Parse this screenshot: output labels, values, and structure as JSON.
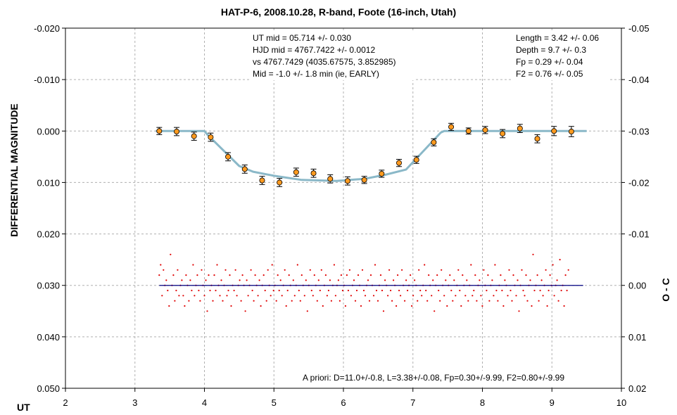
{
  "chart_data": {
    "type": "scatter",
    "title": "HAT-P-6, 2008.10.28, R-band, Foote (16-inch, Utah)",
    "xlabel": "UT",
    "ylabel": "DIFFERENTIAL MAGNITUDE",
    "y2label": "O - C",
    "xlim": [
      2,
      10
    ],
    "ylim": [
      -0.02,
      0.05
    ],
    "y_inverted": true,
    "y2lim": [
      -0.05,
      0.02
    ],
    "grid": true,
    "x_ticks": [
      "2",
      "3",
      "4",
      "5",
      "6",
      "7",
      "8",
      "9",
      "10"
    ],
    "y_ticks": [
      "-0.020",
      "-0.010",
      "0.000",
      "0.010",
      "0.020",
      "0.030",
      "0.040",
      "0.050"
    ],
    "y2_ticks": [
      "-0.05",
      "-0.04",
      "-0.03",
      "-0.02",
      "-0.01",
      "0.00",
      "0.01",
      "0.02"
    ],
    "annotations": {
      "fit": [
        "UT mid = 05.714 +/- 0.030",
        "HJD mid = 4767.7422 +/- 0.0012",
        "vs 4767.7429 (4035.67575, 3.852985)",
        "Mid = -1.0 +/- 1.8 min (ie, EARLY)"
      ],
      "params": [
        "Length = 3.42 +/- 0.06",
        "Depth = 9.7 +/- 0.3",
        "Fp = 0.29 +/- 0.04",
        "F2 = 0.76 +/- 0.05"
      ],
      "apriori": "A priori: D=11.0+/-0.8, L=3.38+/-0.08, Fp=0.30+/-9.99, F2=0.80+/-9.99"
    },
    "series": [
      {
        "type": "binned-points",
        "color": "#ff9a1f",
        "points": [
          {
            "x": 3.35,
            "y": 0.0,
            "err": 0.0007
          },
          {
            "x": 3.6,
            "y": 0.0001,
            "err": 0.0008
          },
          {
            "x": 3.85,
            "y": 0.001,
            "err": 0.0008
          },
          {
            "x": 4.09,
            "y": 0.0012,
            "err": 0.0008
          },
          {
            "x": 4.34,
            "y": 0.005,
            "err": 0.0008
          },
          {
            "x": 4.58,
            "y": 0.0074,
            "err": 0.0008
          },
          {
            "x": 4.83,
            "y": 0.0096,
            "err": 0.0008
          },
          {
            "x": 5.08,
            "y": 0.01,
            "err": 0.0008
          },
          {
            "x": 5.32,
            "y": 0.008,
            "err": 0.0008
          },
          {
            "x": 5.57,
            "y": 0.0082,
            "err": 0.0008
          },
          {
            "x": 5.81,
            "y": 0.0093,
            "err": 0.0008
          },
          {
            "x": 6.06,
            "y": 0.0097,
            "err": 0.0008
          },
          {
            "x": 6.3,
            "y": 0.0095,
            "err": 0.0007
          },
          {
            "x": 6.55,
            "y": 0.0083,
            "err": 0.0007
          },
          {
            "x": 6.8,
            "y": 0.0062,
            "err": 0.0007
          },
          {
            "x": 7.05,
            "y": 0.0056,
            "err": 0.0007
          },
          {
            "x": 7.3,
            "y": 0.0022,
            "err": 0.0007
          },
          {
            "x": 7.55,
            "y": -0.0008,
            "err": 0.0007
          },
          {
            "x": 7.8,
            "y": 0.0,
            "err": 0.0006
          },
          {
            "x": 8.04,
            "y": -0.0002,
            "err": 0.0007
          },
          {
            "x": 8.29,
            "y": 0.0005,
            "err": 0.0008
          },
          {
            "x": 8.54,
            "y": -0.0005,
            "err": 0.0008
          },
          {
            "x": 8.79,
            "y": 0.0015,
            "err": 0.0008
          },
          {
            "x": 9.03,
            "y": 0.0,
            "err": 0.0009
          },
          {
            "x": 9.28,
            "y": 0.0001,
            "err": 0.001
          }
        ]
      },
      {
        "type": "model-line",
        "color": "#8ab8c8",
        "x": [
          3.3,
          4.0,
          4.05,
          4.5,
          4.7,
          5.0,
          5.4,
          5.9,
          6.3,
          6.6,
          6.9,
          7.4,
          7.45,
          9.5
        ],
        "y": [
          0.0,
          0.0,
          0.0008,
          0.0068,
          0.0079,
          0.0087,
          0.0095,
          0.0097,
          0.0093,
          0.0085,
          0.0075,
          0.0003,
          0.0,
          0.0
        ]
      },
      {
        "type": "residual-line",
        "axis": "y2",
        "color": "#000080",
        "x": [
          3.35,
          9.45
        ],
        "y": [
          0.0,
          0.0
        ]
      },
      {
        "type": "residuals",
        "axis": "y2",
        "color": "#e00000",
        "x_start": 3.35,
        "x_step": 0.0203,
        "y": [
          -0.002,
          -0.004,
          0.002,
          -0.003,
          0.0,
          -0.001,
          0.001,
          0.004,
          -0.006,
          0.0,
          -0.002,
          0.003,
          0.001,
          -0.003,
          0.002,
          0.0,
          -0.001,
          0.002,
          0.004,
          -0.002,
          0.0,
          0.003,
          -0.001,
          0.001,
          -0.004,
          0.002,
          0.0,
          -0.002,
          0.001,
          0.003,
          -0.003,
          0.0,
          0.002,
          -0.001,
          0.005,
          -0.002,
          0.001,
          0.0,
          0.003,
          -0.002,
          0.001,
          -0.004,
          0.0,
          0.002,
          -0.001,
          0.003,
          0.0,
          -0.003,
          0.002,
          0.001,
          -0.002,
          0.004,
          0.0,
          0.001,
          -0.003,
          0.002,
          0.0,
          -0.001,
          0.003,
          -0.002,
          0.0,
          0.005,
          -0.001,
          0.002,
          0.0,
          -0.003,
          0.001,
          0.003,
          -0.002,
          0.0,
          0.002,
          -0.001,
          0.004,
          0.0,
          -0.002,
          0.001,
          0.003,
          -0.003,
          0.0,
          0.002,
          -0.004,
          0.001,
          0.0,
          0.003,
          -0.002,
          0.001,
          -0.001,
          0.002,
          0.0,
          -0.003,
          0.004,
          0.001,
          -0.002,
          0.0,
          0.003,
          -0.001,
          0.002,
          0.0,
          -0.004,
          0.001,
          0.003,
          -0.002,
          0.0,
          0.002,
          -0.001,
          0.005,
          0.0,
          -0.003,
          0.001,
          0.002,
          -0.002,
          0.0,
          0.003,
          -0.001,
          0.001,
          -0.003,
          0.004,
          0.0,
          -0.002,
          0.002,
          0.001,
          -0.001,
          0.003,
          0.0,
          -0.004,
          0.002,
          0.0,
          -0.001,
          0.003,
          -0.002,
          0.001,
          0.0,
          0.004,
          -0.002,
          0.001,
          -0.003,
          0.002,
          0.0,
          -0.001,
          0.003,
          0.001,
          -0.002,
          0.0,
          0.004,
          -0.003,
          0.001,
          0.002,
          0.0,
          -0.001,
          0.003,
          -0.002,
          0.0,
          0.002,
          -0.004,
          0.001,
          0.003,
          0.0,
          -0.002,
          0.001,
          0.005,
          -0.001,
          0.0,
          0.002,
          -0.003,
          0.001,
          0.003,
          -0.001,
          0.0,
          0.004,
          -0.002,
          0.001,
          0.002,
          -0.003,
          0.0,
          0.003,
          -0.001,
          0.001,
          0.0,
          -0.002,
          0.004,
          0.002,
          -0.001,
          0.0,
          0.003,
          -0.003,
          0.001,
          0.002,
          0.0,
          -0.004,
          0.001,
          0.003,
          -0.002,
          0.0,
          0.002,
          -0.001,
          0.005,
          0.0,
          -0.002,
          0.001,
          0.003,
          -0.003,
          0.0,
          0.002,
          -0.001,
          0.004,
          0.0,
          -0.002,
          0.001,
          0.003,
          -0.001,
          0.002,
          0.0,
          -0.003,
          0.001,
          0.004,
          -0.002,
          0.0,
          0.002,
          -0.001,
          0.003,
          0.0,
          -0.004,
          0.002,
          0.001,
          -0.002,
          0.003,
          0.0,
          -0.001,
          0.002,
          0.004,
          -0.003,
          0.0,
          0.001,
          -0.002,
          0.003,
          0.0,
          -0.001,
          0.002,
          -0.004,
          0.001,
          0.003,
          0.0,
          -0.002,
          0.001,
          0.004,
          -0.001,
          0.0,
          0.002,
          -0.003,
          0.001,
          0.003,
          -0.002,
          0.0,
          0.002,
          -0.001,
          0.005,
          0.0,
          -0.003,
          0.001,
          0.002,
          -0.002,
          0.003,
          0.0,
          -0.001,
          0.004,
          -0.006,
          0.001,
          0.0,
          -0.002,
          0.003,
          0.001,
          -0.001,
          0.002,
          0.0,
          -0.003,
          0.004,
          0.001,
          -0.002,
          0.0,
          -0.004,
          0.002,
          0.0,
          -0.001,
          0.003,
          -0.005,
          0.001,
          0.0,
          0.004,
          -0.002,
          0.001,
          -0.003
        ]
      }
    ]
  }
}
